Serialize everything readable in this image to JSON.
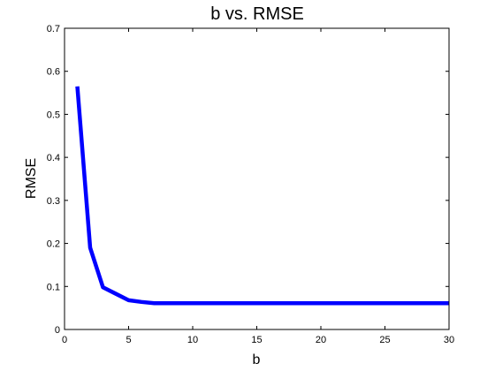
{
  "chart_data": {
    "type": "line",
    "title": "b vs. RMSE",
    "xlabel": "b",
    "ylabel": "RMSE",
    "xlim": [
      0,
      30
    ],
    "ylim": [
      0,
      0.7
    ],
    "xticks": [
      0,
      5,
      10,
      15,
      20,
      25,
      30
    ],
    "yticks": [
      0,
      0.1,
      0.2,
      0.3,
      0.4,
      0.5,
      0.6,
      0.7
    ],
    "xtick_labels": [
      "0",
      "5",
      "10",
      "15",
      "20",
      "25",
      "30"
    ],
    "ytick_labels": [
      "0",
      "0.1",
      "0.2",
      "0.3",
      "0.4",
      "0.5",
      "0.6",
      "0.7"
    ],
    "grid": false,
    "series": [
      {
        "color": "#0000ff",
        "x": [
          1,
          2,
          3,
          4,
          5,
          6,
          7,
          8,
          9,
          10,
          11,
          12,
          13,
          14,
          15,
          16,
          17,
          18,
          19,
          20,
          21,
          22,
          23,
          24,
          25,
          26,
          27,
          28,
          29,
          30
        ],
        "y": [
          0.565,
          0.19,
          0.098,
          0.083,
          0.068,
          0.064,
          0.061,
          0.061,
          0.061,
          0.061,
          0.061,
          0.061,
          0.061,
          0.061,
          0.061,
          0.061,
          0.061,
          0.061,
          0.061,
          0.061,
          0.061,
          0.061,
          0.061,
          0.061,
          0.061,
          0.061,
          0.061,
          0.061,
          0.061,
          0.061
        ]
      }
    ]
  }
}
